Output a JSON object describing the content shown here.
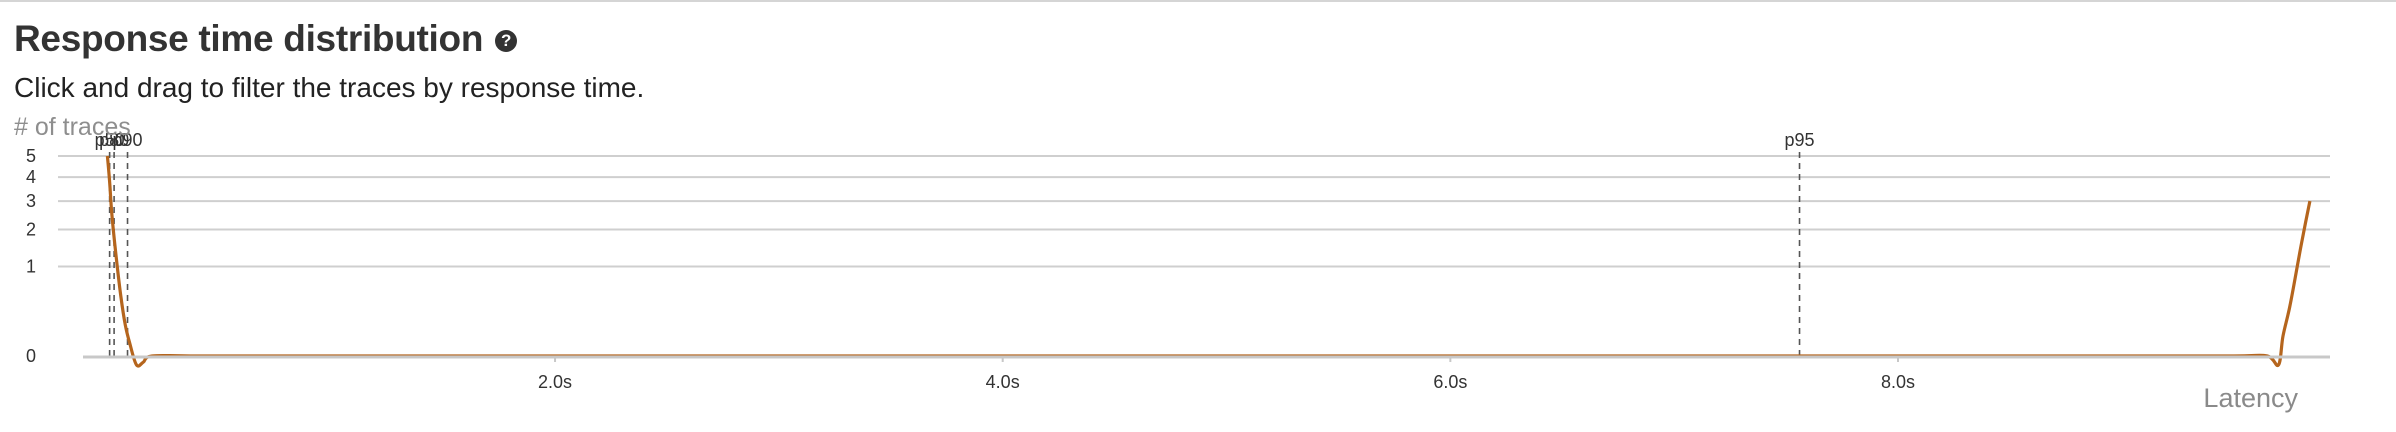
{
  "panel": {
    "title": "Response time distribution",
    "help_icon": "question-circle-icon",
    "subtitle": "Click and drag to filter the traces by response time."
  },
  "chart_data": {
    "type": "line",
    "title": "Response time distribution",
    "ylabel": "# of traces",
    "xlabel": "Latency",
    "y_scale": "sqrt",
    "ylim": [
      0,
      5
    ],
    "y_ticks": [
      0,
      1,
      2,
      3,
      4,
      5
    ],
    "xlim": [
      -0.1,
      9.93
    ],
    "x_ticks": [
      {
        "value": 2.0,
        "label": "2.0s"
      },
      {
        "value": 4.0,
        "label": "4.0s"
      },
      {
        "value": 6.0,
        "label": "6.0s"
      },
      {
        "value": 8.0,
        "label": "8.0s"
      }
    ],
    "grid": true,
    "series": [
      {
        "color": "#b5651d",
        "x": [
          0.0,
          0.01,
          0.02,
          0.04,
          0.06,
          0.08,
          0.1,
          0.13,
          0.16,
          0.2,
          0.4,
          1.0,
          2.0,
          4.0,
          6.0,
          8.0,
          9.0,
          9.5,
          9.65,
          9.7,
          9.72,
          9.75,
          9.78,
          9.8,
          9.82,
          9.84
        ],
        "y": [
          5.0,
          3.8,
          2.5,
          1.2,
          0.45,
          0.12,
          0.02,
          -0.01,
          -0.005,
          0,
          0,
          0,
          0,
          0,
          0,
          0,
          0,
          0,
          0,
          -0.01,
          0.05,
          0.3,
          0.9,
          1.5,
          2.2,
          3.0
        ]
      }
    ],
    "percentiles": [
      {
        "label": "p50",
        "value": 0.01
      },
      {
        "label": "p80",
        "value": 0.03
      },
      {
        "label": "p90",
        "value": 0.09
      },
      {
        "label": "p95",
        "value": 7.56
      }
    ]
  }
}
